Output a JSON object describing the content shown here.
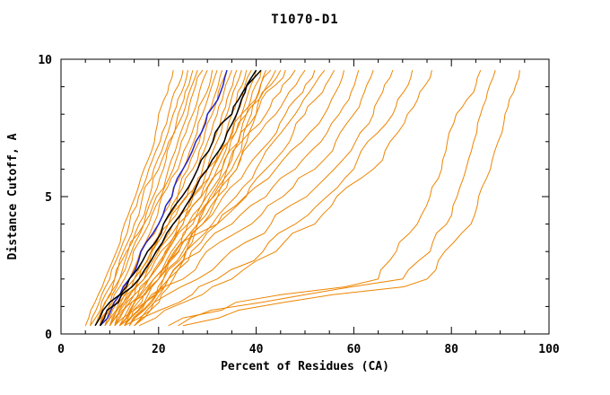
{
  "title": "T1070-D1",
  "chart_data": {
    "type": "line",
    "title": "T1070-D1",
    "xlabel": "Percent of Residues (CA)",
    "ylabel": "Distance Cutoff, A",
    "xlim": [
      0,
      100
    ],
    "ylim": [
      0,
      10
    ],
    "x_major_ticks": [
      0,
      20,
      40,
      60,
      80,
      100
    ],
    "x_minor_step": 5,
    "y_major_ticks": [
      0,
      5,
      10
    ],
    "y_minor_step": 1,
    "legend": "none",
    "grid": false,
    "colors": {
      "model": "#ee8500",
      "highlight_black": "#000000",
      "highlight_blue": "#2222cc",
      "frame": "#000000",
      "background": "#ffffff"
    },
    "y_levels": [
      0.3,
      2,
      4,
      6,
      8,
      9.6
    ],
    "series": [
      {
        "group": "model",
        "x": [
          5,
          9,
          13,
          17,
          20,
          23
        ]
      },
      {
        "group": "model",
        "x": [
          6,
          10,
          14,
          18,
          22,
          25
        ]
      },
      {
        "group": "model",
        "x": [
          6,
          11,
          15,
          19,
          23,
          26
        ]
      },
      {
        "group": "model",
        "x": [
          7,
          11,
          16,
          20,
          24,
          27
        ]
      },
      {
        "group": "model",
        "x": [
          7,
          12,
          17,
          21,
          25,
          28
        ]
      },
      {
        "group": "model",
        "x": [
          8,
          12,
          17,
          22,
          26,
          29
        ]
      },
      {
        "group": "model",
        "x": [
          8,
          13,
          18,
          23,
          27,
          30
        ]
      },
      {
        "group": "model",
        "x": [
          9,
          14,
          19,
          24,
          28,
          31
        ]
      },
      {
        "group": "model",
        "x": [
          9,
          14,
          20,
          25,
          29,
          32
        ]
      },
      {
        "group": "model",
        "x": [
          10,
          15,
          21,
          26,
          30,
          33
        ]
      },
      {
        "group": "model",
        "x": [
          10,
          16,
          21,
          27,
          31,
          34
        ]
      },
      {
        "group": "model",
        "x": [
          11,
          16,
          22,
          28,
          32,
          35
        ]
      },
      {
        "group": "model",
        "x": [
          11,
          17,
          23,
          29,
          33,
          36
        ]
      },
      {
        "group": "model",
        "x": [
          12,
          18,
          24,
          30,
          34,
          37
        ]
      },
      {
        "group": "model",
        "x": [
          12,
          18,
          25,
          31,
          35,
          38
        ]
      },
      {
        "group": "model",
        "x": [
          13,
          19,
          26,
          32,
          36,
          39
        ]
      },
      {
        "group": "model",
        "x": [
          13,
          20,
          27,
          33,
          37,
          40
        ]
      },
      {
        "group": "model",
        "x": [
          14,
          21,
          28,
          34,
          38,
          41
        ]
      },
      {
        "group": "model",
        "x": [
          14,
          21,
          28,
          35,
          39,
          42
        ]
      },
      {
        "group": "model",
        "x": [
          15,
          22,
          29,
          36,
          40,
          44
        ]
      },
      {
        "group": "model",
        "x": [
          8,
          15,
          22,
          30,
          37,
          43
        ]
      },
      {
        "group": "model",
        "x": [
          9,
          16,
          24,
          31,
          38,
          45
        ]
      },
      {
        "group": "model",
        "x": [
          10,
          17,
          25,
          33,
          40,
          46
        ]
      },
      {
        "group": "model",
        "x": [
          11,
          18,
          26,
          34,
          42,
          48
        ]
      },
      {
        "group": "model",
        "x": [
          12,
          19,
          28,
          36,
          44,
          50
        ]
      },
      {
        "group": "model",
        "x": [
          13,
          20,
          29,
          38,
          46,
          52
        ]
      },
      {
        "group": "model",
        "x": [
          14,
          22,
          31,
          40,
          48,
          54
        ]
      },
      {
        "group": "model",
        "x": [
          15,
          23,
          32,
          42,
          50,
          56
        ]
      },
      {
        "group": "model",
        "x": [
          10,
          20,
          32,
          44,
          54,
          58
        ]
      },
      {
        "group": "model",
        "x": [
          11,
          22,
          35,
          48,
          57,
          61
        ]
      },
      {
        "group": "model",
        "x": [
          12,
          25,
          39,
          52,
          60,
          64
        ]
      },
      {
        "group": "model",
        "x": [
          13,
          28,
          43,
          56,
          64,
          68
        ]
      },
      {
        "group": "model",
        "x": [
          15,
          32,
          48,
          60,
          68,
          72
        ]
      },
      {
        "group": "model",
        "x": [
          16,
          35,
          52,
          64,
          71,
          76
        ]
      },
      {
        "group": "model",
        "x": [
          22,
          65,
          73,
          78,
          81,
          86
        ]
      },
      {
        "group": "model",
        "x": [
          24,
          70,
          79,
          83,
          86,
          89
        ]
      },
      {
        "group": "model",
        "x": [
          25,
          75,
          84,
          88,
          91,
          94
        ]
      },
      {
        "group": "highlight_blue",
        "x": [
          8,
          14,
          20,
          25,
          30,
          34
        ]
      },
      {
        "group": "highlight_black",
        "x": [
          7,
          14,
          21,
          28,
          35,
          41
        ]
      },
      {
        "group": "highlight_black",
        "x": [
          8,
          16,
          23,
          30,
          36,
          40
        ]
      }
    ]
  }
}
